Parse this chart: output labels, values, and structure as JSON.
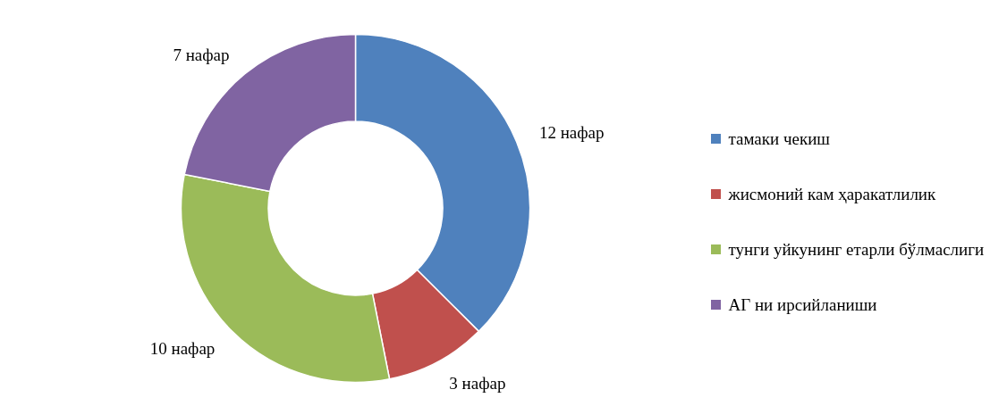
{
  "chart_data": {
    "type": "donut",
    "categories": [
      "тамаки чекиш",
      "жисмоний кам ҳаракатлилик",
      "тунги уйкунинг етарли бўлмаслиги",
      "АГ ни ирсийланиши"
    ],
    "values": [
      12,
      3,
      10,
      7
    ],
    "colors": [
      "#4f81bd",
      "#c0504d",
      "#9bbb59",
      "#8064a2"
    ],
    "value_labels": [
      "12 нафар",
      "3 нафар",
      "10 нафар",
      "7 нафар"
    ],
    "legend": "right"
  }
}
